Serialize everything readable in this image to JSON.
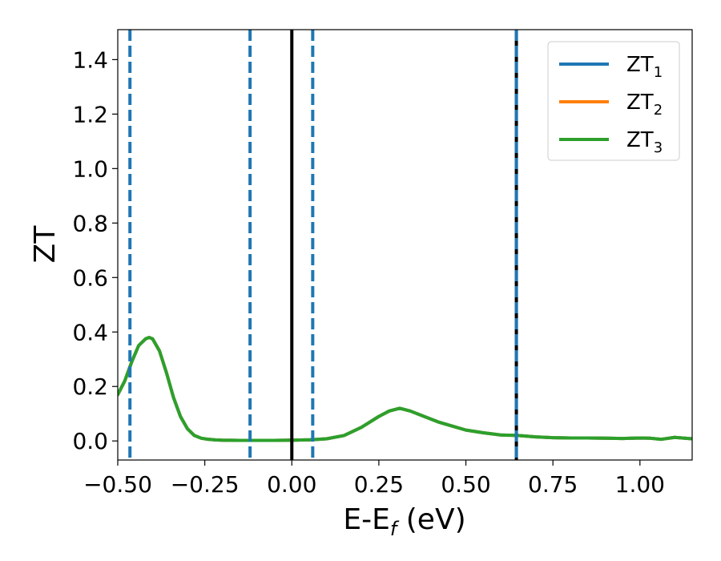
{
  "chart_data": {
    "type": "line",
    "xlabel": "E-E",
    "xlabel_sub": "f",
    "xlabel_unit": " (eV)",
    "ylabel": "ZT",
    "xlim": [
      -0.5,
      1.15
    ],
    "ylim": [
      -0.07,
      1.51
    ],
    "xticks": [
      -0.5,
      -0.25,
      0.0,
      0.25,
      0.5,
      0.75,
      1.0
    ],
    "xtick_labels": [
      "−0.50",
      "−0.25",
      "0.00",
      "0.25",
      "0.50",
      "0.75",
      "1.00"
    ],
    "yticks": [
      0.0,
      0.2,
      0.4,
      0.6,
      0.8,
      1.0,
      1.2,
      1.4
    ],
    "ytick_labels": [
      "0.0",
      "0.2",
      "0.4",
      "0.6",
      "0.8",
      "1.0",
      "1.2",
      "1.4"
    ],
    "legend_position": "top-right",
    "x": [
      -0.5,
      -0.48,
      -0.46,
      -0.44,
      -0.42,
      -0.41,
      -0.4,
      -0.38,
      -0.36,
      -0.34,
      -0.32,
      -0.3,
      -0.28,
      -0.26,
      -0.24,
      -0.22,
      -0.2,
      -0.15,
      -0.1,
      -0.05,
      0.0,
      0.05,
      0.1,
      0.15,
      0.2,
      0.25,
      0.28,
      0.31,
      0.34,
      0.38,
      0.42,
      0.46,
      0.5,
      0.55,
      0.6,
      0.65,
      0.7,
      0.75,
      0.8,
      0.85,
      0.9,
      0.95,
      1.0,
      1.03,
      1.06,
      1.1,
      1.15
    ],
    "series": [
      {
        "name_main": "ZT",
        "name_sub": "1",
        "color": "#1f77b4",
        "values": [
          0.17,
          0.22,
          0.29,
          0.35,
          0.375,
          0.38,
          0.375,
          0.33,
          0.25,
          0.16,
          0.09,
          0.045,
          0.02,
          0.01,
          0.006,
          0.004,
          0.003,
          0.002,
          0.002,
          0.002,
          0.003,
          0.004,
          0.008,
          0.02,
          0.05,
          0.09,
          0.11,
          0.12,
          0.11,
          0.09,
          0.07,
          0.055,
          0.04,
          0.03,
          0.022,
          0.02,
          0.015,
          0.012,
          0.011,
          0.011,
          0.01,
          0.009,
          0.011,
          0.01,
          0.006,
          0.013,
          0.008
        ]
      },
      {
        "name_main": "ZT",
        "name_sub": "2",
        "color": "#ff7f0e",
        "values": [
          0.17,
          0.22,
          0.29,
          0.35,
          0.375,
          0.38,
          0.375,
          0.33,
          0.25,
          0.16,
          0.09,
          0.045,
          0.02,
          0.01,
          0.006,
          0.004,
          0.003,
          0.002,
          0.002,
          0.002,
          0.003,
          0.004,
          0.008,
          0.02,
          0.05,
          0.09,
          0.11,
          0.12,
          0.11,
          0.09,
          0.07,
          0.055,
          0.04,
          0.03,
          0.022,
          0.02,
          0.015,
          0.012,
          0.011,
          0.011,
          0.01,
          0.009,
          0.011,
          0.01,
          0.006,
          0.013,
          0.008
        ]
      },
      {
        "name_main": "ZT",
        "name_sub": "3",
        "color": "#2ca02c",
        "values": [
          0.17,
          0.22,
          0.29,
          0.35,
          0.375,
          0.38,
          0.375,
          0.33,
          0.25,
          0.16,
          0.09,
          0.045,
          0.02,
          0.01,
          0.006,
          0.004,
          0.003,
          0.002,
          0.002,
          0.002,
          0.003,
          0.004,
          0.008,
          0.02,
          0.05,
          0.09,
          0.11,
          0.12,
          0.11,
          0.09,
          0.07,
          0.055,
          0.04,
          0.03,
          0.022,
          0.02,
          0.015,
          0.012,
          0.011,
          0.011,
          0.01,
          0.009,
          0.011,
          0.01,
          0.006,
          0.013,
          0.008
        ]
      }
    ],
    "vlines": [
      {
        "x": 0.0,
        "style": "solid",
        "color": "#000000"
      },
      {
        "x": 0.645,
        "style": "solid",
        "color": "#000000"
      },
      {
        "x": -0.465,
        "style": "dashed",
        "color": "#1f77b4"
      },
      {
        "x": -0.12,
        "style": "dashed",
        "color": "#1f77b4"
      },
      {
        "x": 0.06,
        "style": "dashed",
        "color": "#1f77b4"
      },
      {
        "x": 0.645,
        "style": "dashed",
        "color": "#1f77b4"
      }
    ]
  }
}
